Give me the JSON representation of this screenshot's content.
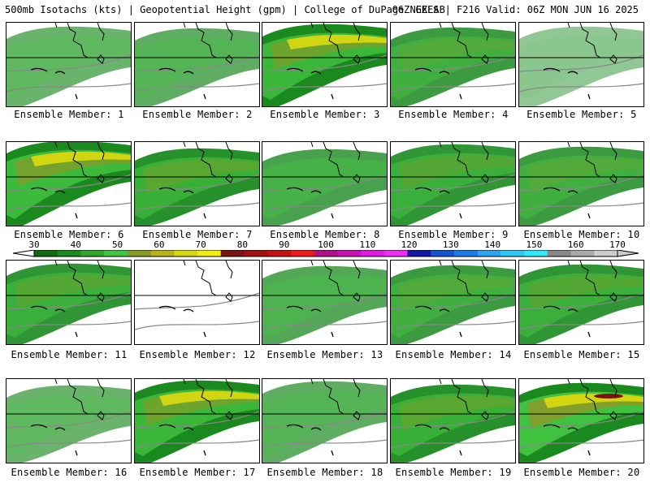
{
  "title": {
    "left": "500mb Isotachs (kts) | Geopotential Height (gpm) | College of DuPage NEXLAB",
    "right": "06Z GEFS | F216 Valid: 06Z MON JUN 16 2025"
  },
  "colors": {
    "background": "#ffffff",
    "land_outline": "#000000",
    "height_contour": "#888888"
  },
  "colorbar": {
    "ticks": [
      "30",
      "40",
      "50",
      "60",
      "70",
      "80",
      "90",
      "100",
      "110",
      "120",
      "130",
      "140",
      "150",
      "160",
      "170"
    ],
    "colors": [
      "#0f6a14",
      "#1a8a1f",
      "#2fa52c",
      "#44c541",
      "#8a9a28",
      "#b4b418",
      "#d8d810",
      "#f0ee10",
      "#7a1414",
      "#a41010",
      "#c81212",
      "#ee1a1a",
      "#b0108a",
      "#c812b8",
      "#e01ae0",
      "#f02ef4",
      "#1414a8",
      "#1452d0",
      "#1a7ae8",
      "#2aa4f0",
      "#2ec8f4",
      "#30e8f8",
      "#888888",
      "#aaaaaa",
      "#cccccc"
    ]
  },
  "panels": [
    {
      "label": "Ensemble Member: 1",
      "intensity": 0.25,
      "shift": 0
    },
    {
      "label": "Ensemble Member: 2",
      "intensity": 0.3,
      "shift": 2
    },
    {
      "label": "Ensemble Member: 3",
      "intensity": 0.7,
      "shift": -3
    },
    {
      "label": "Ensemble Member: 4",
      "intensity": 0.45,
      "shift": 1
    },
    {
      "label": "Ensemble Member: 5",
      "intensity": 0.08,
      "shift": 0
    },
    {
      "label": "Ensemble Member: 6",
      "intensity": 0.75,
      "shift": -6
    },
    {
      "label": "Ensemble Member: 7",
      "intensity": 0.55,
      "shift": 3
    },
    {
      "label": "Ensemble Member: 8",
      "intensity": 0.4,
      "shift": 4
    },
    {
      "label": "Ensemble Member: 9",
      "intensity": 0.5,
      "shift": -2
    },
    {
      "label": "Ensemble Member: 10",
      "intensity": 0.45,
      "shift": 1
    },
    {
      "label": "Ensemble Member: 11",
      "intensity": 0.5,
      "shift": -1
    },
    {
      "label": "Ensemble Member: 12",
      "intensity": 0.0,
      "shift": 0
    },
    {
      "label": "Ensemble Member: 13",
      "intensity": 0.35,
      "shift": 2
    },
    {
      "label": "Ensemble Member: 14",
      "intensity": 0.45,
      "shift": 1
    },
    {
      "label": "Ensemble Member: 15",
      "intensity": 0.5,
      "shift": 0
    },
    {
      "label": "Ensemble Member: 16",
      "intensity": 0.25,
      "shift": 3
    },
    {
      "label": "Ensemble Member: 17",
      "intensity": 0.7,
      "shift": -3
    },
    {
      "label": "Ensemble Member: 18",
      "intensity": 0.3,
      "shift": -2
    },
    {
      "label": "Ensemble Member: 19",
      "intensity": 0.55,
      "shift": 2
    },
    {
      "label": "Ensemble Member: 20",
      "intensity": 0.85,
      "shift": 0
    }
  ]
}
